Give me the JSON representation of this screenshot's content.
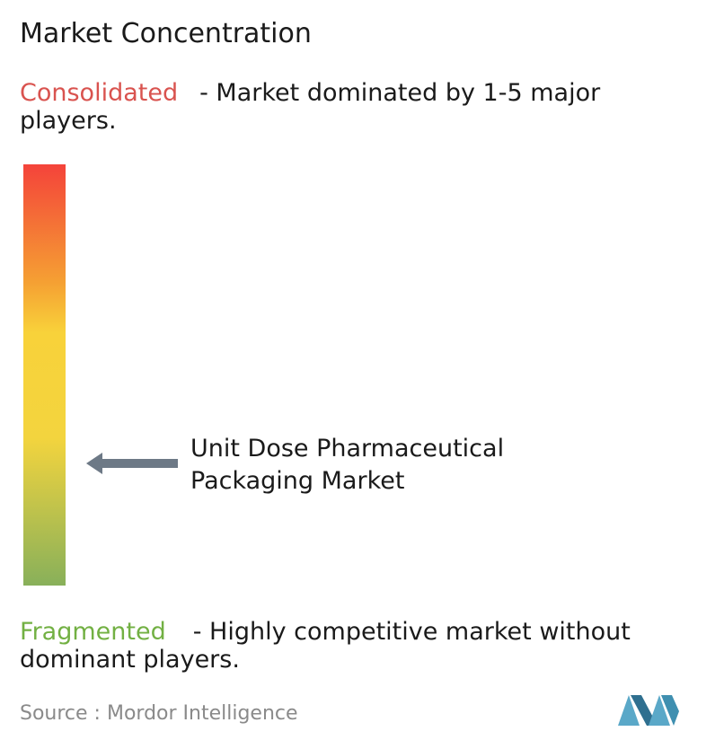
{
  "title": "Market Concentration",
  "consolidated": {
    "label": "Consolidated",
    "description_lines": [
      "- Market dominated by 1-5 major",
      "players."
    ]
  },
  "fragmented": {
    "label": "Fragmented",
    "description_lines": [
      "- Highly competitive market without",
      "dominant players."
    ]
  },
  "market": {
    "label_lines": [
      "Unit Dose Pharmaceutical",
      "Packaging Market"
    ]
  },
  "source": {
    "prefix": "Source :",
    "name": "Mordor Intelligence"
  }
}
